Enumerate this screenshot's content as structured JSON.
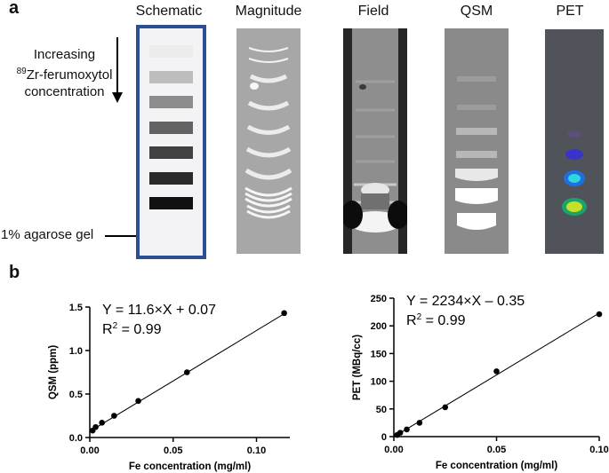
{
  "panel_a": {
    "letter": "a",
    "columns": [
      "Schematic",
      "Magnitude",
      "Field",
      "QSM",
      "PET"
    ],
    "annotation_increasing": "Increasing",
    "annotation_superscript": "89",
    "annotation_agent": "Zr-ferumoxytol",
    "annotation_concentration": "concentration",
    "annotation_gel": "1% agarose gel",
    "schematic_border_color": "#2b4e95",
    "schematic_band_grays": [
      "#ececec",
      "#bdbdbd",
      "#8c8c8c",
      "#636363",
      "#414141",
      "#2a2a2a",
      "#111111"
    ]
  },
  "panel_b": {
    "letter": "b"
  },
  "chart_data": [
    {
      "type": "scatter",
      "title": "",
      "xlabel": "Fe concentration (mg/ml)",
      "ylabel": "QSM (ppm)",
      "xlim": [
        0,
        0.12
      ],
      "ylim": [
        0,
        1.5
      ],
      "xticks": [
        0,
        0.05,
        0.1
      ],
      "xtick_labels": [
        "0.00",
        "0.05",
        "0.10"
      ],
      "yticks": [
        0,
        0.5,
        1.0,
        1.5
      ],
      "ytick_labels": [
        "0.0",
        "0.5",
        "1.0",
        "1.5"
      ],
      "x": [
        0.0017,
        0.0035,
        0.0073,
        0.0146,
        0.0291,
        0.0583,
        0.1166
      ],
      "y": [
        0.08,
        0.12,
        0.17,
        0.25,
        0.42,
        0.75,
        1.43
      ],
      "fit": {
        "slope": 11.6,
        "intercept": 0.07
      },
      "equation": "Y = 11.6×X + 0.07",
      "r2_prefix": "R",
      "r2_sup": "2",
      "r2_value": " = 0.99"
    },
    {
      "type": "scatter",
      "title": "",
      "xlabel": "Fe concentration (mg/ml)",
      "ylabel": "PET (MBq/cc)",
      "xlim": [
        0,
        0.1
      ],
      "ylim": [
        0,
        250
      ],
      "xticks": [
        0,
        0.05,
        0.1
      ],
      "xtick_labels": [
        "0.00",
        "0.05",
        "0.10"
      ],
      "yticks": [
        0,
        50,
        100,
        150,
        200,
        250
      ],
      "ytick_labels": [
        "0",
        "50",
        "100",
        "150",
        "200",
        "250"
      ],
      "x": [
        0.0016,
        0.0031,
        0.0063,
        0.0125,
        0.025,
        0.05,
        0.1
      ],
      "y": [
        3,
        7,
        13,
        25,
        53,
        118,
        221
      ],
      "fit": {
        "slope": 2234,
        "intercept": -0.35
      },
      "equation": "Y = 2234×X – 0.35",
      "r2_prefix": "R",
      "r2_sup": "2",
      "r2_value": " = 0.99"
    }
  ]
}
